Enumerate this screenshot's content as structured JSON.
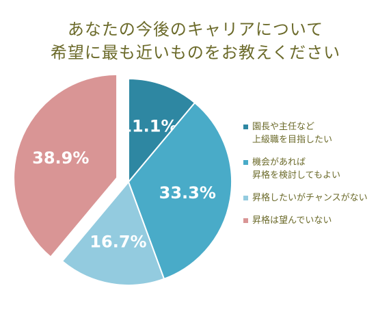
{
  "title": {
    "line1": "あなたの今後のキャリアについて",
    "line2": "希望に最も近いものをお教えください"
  },
  "chart_data": {
    "type": "pie",
    "title": "あなたの今後のキャリアについて希望に最も近いものをお教えください",
    "categories": [
      "園長や主任など\n上級職を目指したい",
      "機会があれば\n昇格を検討してもよい",
      "昇格したいがチャンスがない",
      "昇格は望んでいない"
    ],
    "values": [
      11.1,
      33.3,
      16.7,
      38.9
    ],
    "labels": [
      "11.1%",
      "33.3%",
      "16.7%",
      "38.9%"
    ],
    "colors": [
      "#2e87a2",
      "#49abc8",
      "#93cbdf",
      "#d99595"
    ],
    "exploded": [
      false,
      false,
      false,
      true
    ],
    "legend_position": "right"
  }
}
